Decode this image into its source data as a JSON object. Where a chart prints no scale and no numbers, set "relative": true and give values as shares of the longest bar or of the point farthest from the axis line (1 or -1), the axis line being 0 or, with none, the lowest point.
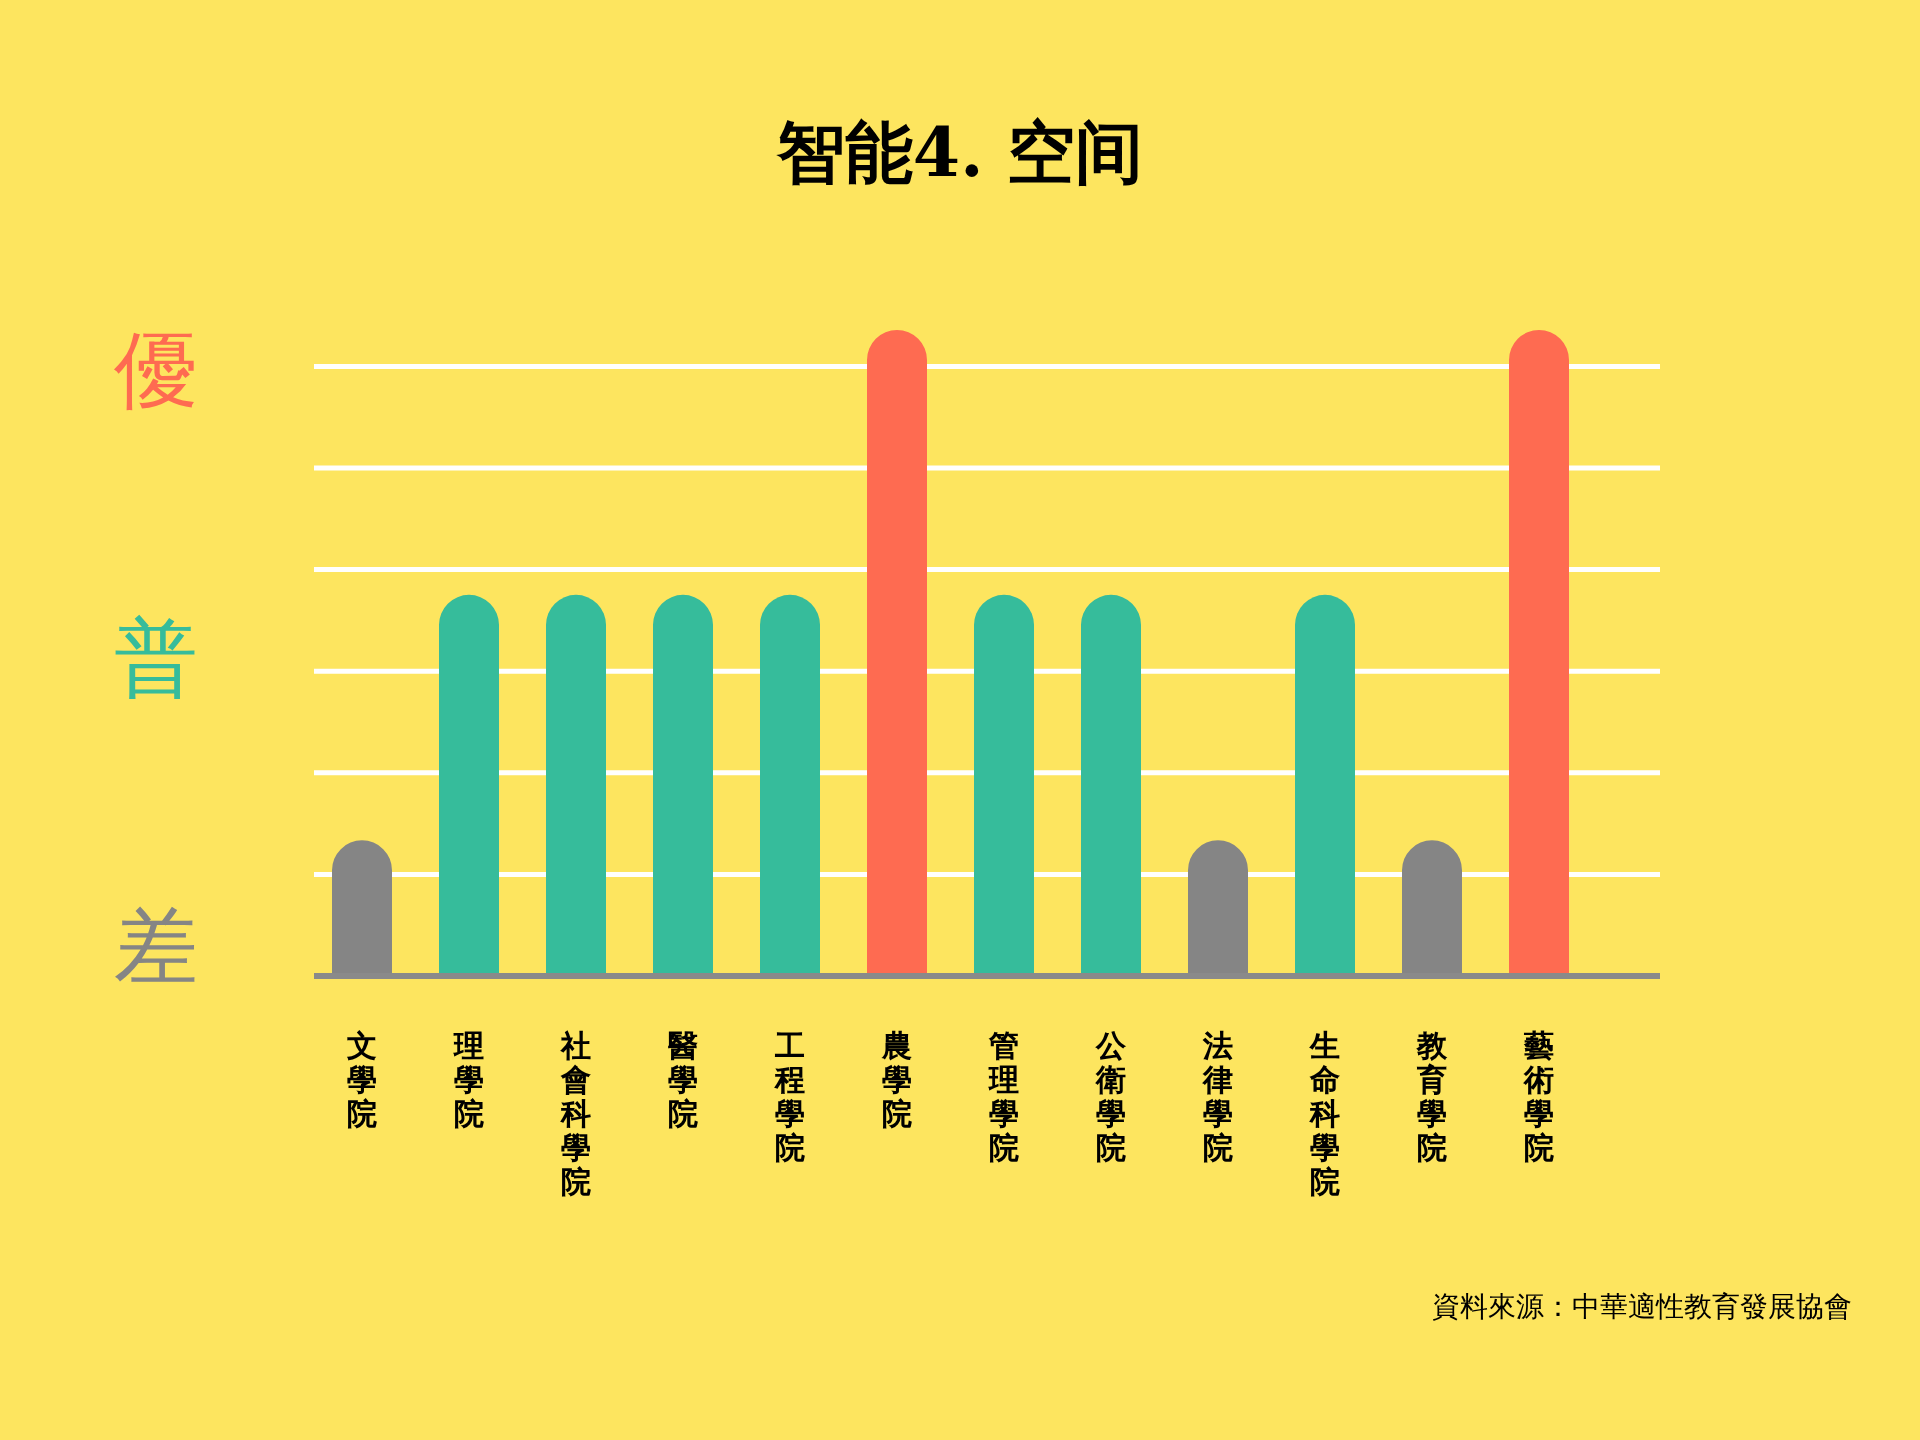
{
  "chart_data": {
    "type": "bar",
    "title": "智能4.  空间",
    "categories": [
      "文學院",
      "理學院",
      "社會科學院",
      "醫學院",
      "工程學院",
      "農學院",
      "管理學院",
      "公衛學院",
      "法律學院",
      "生命科學院",
      "教育學院",
      "藝術學院"
    ],
    "values": [
      0.21,
      0.59,
      0.59,
      0.59,
      0.59,
      1,
      0.59,
      0.59,
      0.21,
      0.59,
      0.21,
      1
    ],
    "colors": [
      "#858585",
      "#36bc9b",
      "#36bc9b",
      "#36bc9b",
      "#36bc9b",
      "#fe6b51",
      "#36bc9b",
      "#36bc9b",
      "#858585",
      "#36bc9b",
      "#858585",
      "#fe6b51"
    ],
    "relative": true,
    "grid": "y",
    "annotations": [
      "優",
      "普",
      "差",
      "資料來源：中華適性教育發展協會"
    ]
  }
}
